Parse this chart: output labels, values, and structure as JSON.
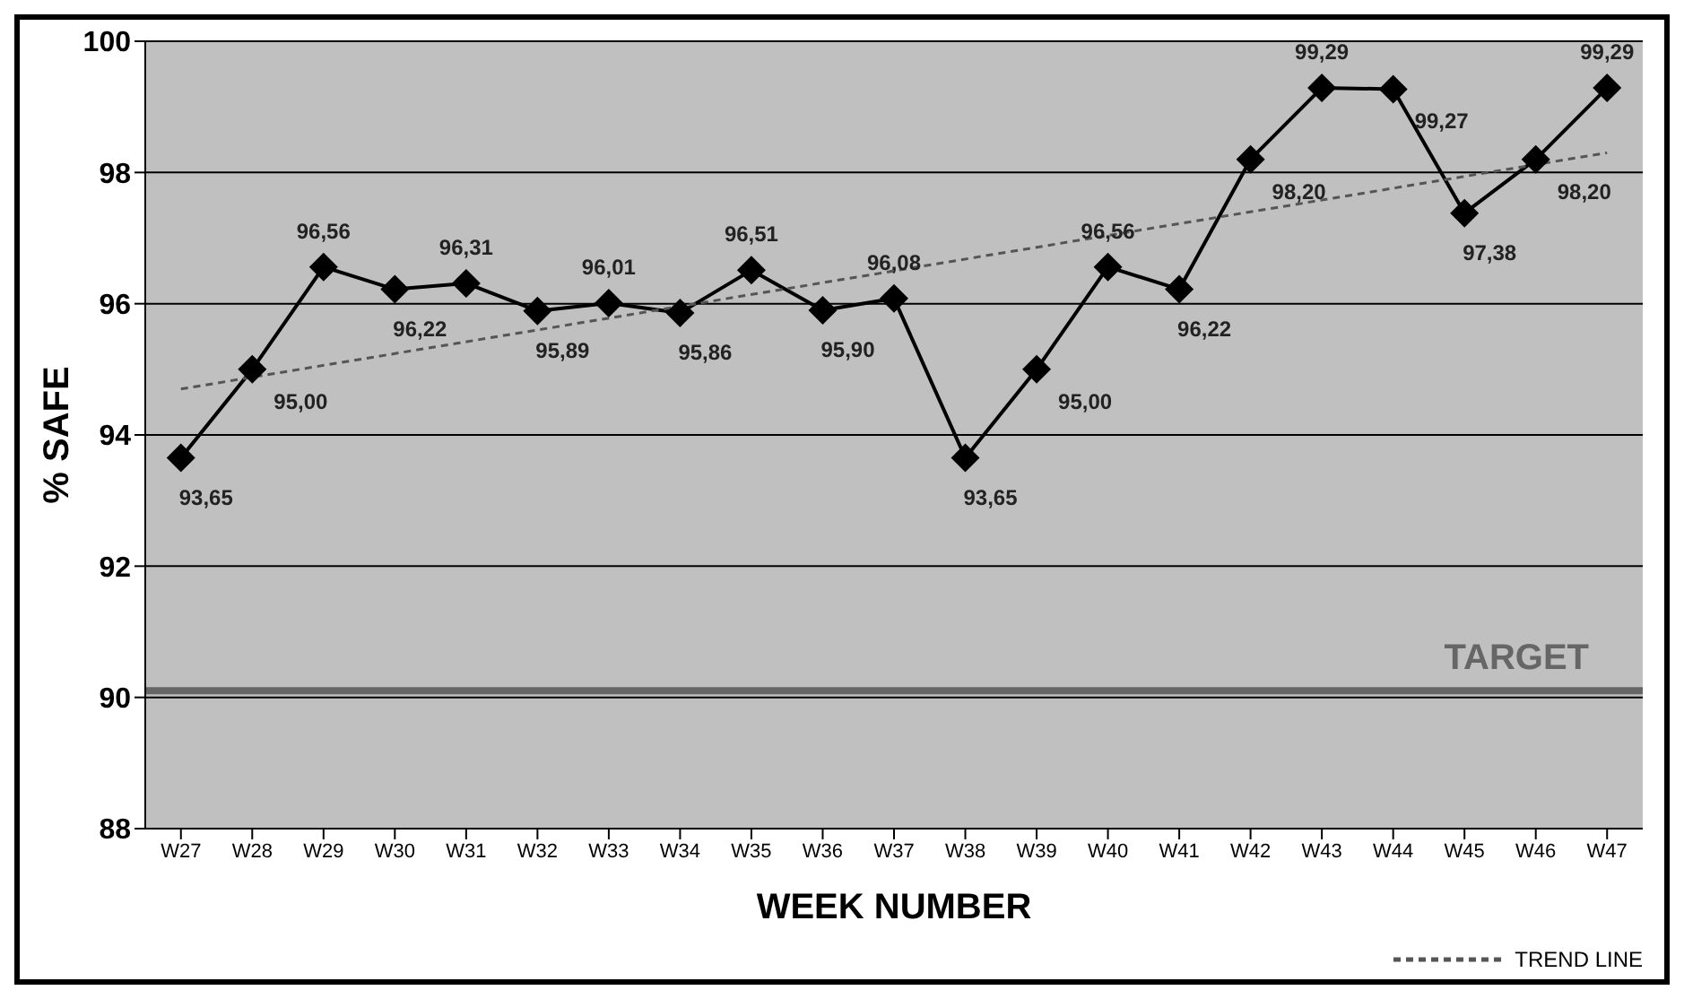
{
  "chart_data": {
    "type": "line",
    "xlabel": "WEEK NUMBER",
    "ylabel": "% SAFE",
    "categories": [
      "W27",
      "W28",
      "W29",
      "W30",
      "W31",
      "W32",
      "W33",
      "W34",
      "W35",
      "W36",
      "W37",
      "W38",
      "W39",
      "W40",
      "W41",
      "W42",
      "W43",
      "W44",
      "W45",
      "W46",
      "W47"
    ],
    "series": [
      {
        "color": "#000000",
        "marker": "diamond",
        "line_style": "solid",
        "values": [
          93.65,
          95.0,
          96.56,
          96.22,
          96.31,
          95.89,
          96.01,
          95.86,
          96.51,
          95.9,
          96.08,
          93.65,
          95.0,
          96.56,
          96.22,
          98.2,
          99.29,
          99.27,
          97.38,
          98.2,
          99.29
        ],
        "value_labels": [
          "93,65",
          "95,00",
          "96,56",
          "96,22",
          "96,31",
          "95,89",
          "96,01",
          "95,86",
          "96,51",
          "95,90",
          "96,08",
          "93,65",
          "95,00",
          "96,56",
          "96,22",
          "98,20",
          "99,29",
          "99,27",
          "97,38",
          "98,20",
          "99,29"
        ]
      },
      {
        "name": "TREND LINE",
        "type": "line",
        "color": "#555555",
        "marker": "none",
        "line_style": "dashed",
        "x": [
          "W27",
          "W47"
        ],
        "values": [
          94.7,
          98.3
        ]
      }
    ],
    "ylim": [
      88,
      100
    ],
    "yticks": [
      88,
      90,
      92,
      94,
      96,
      98,
      100
    ],
    "grid": "y",
    "legend": "bottom right",
    "ref_lines": [
      {
        "axis": "y",
        "value": 90.1,
        "label": "TARGET",
        "color": "#666666"
      }
    ]
  }
}
